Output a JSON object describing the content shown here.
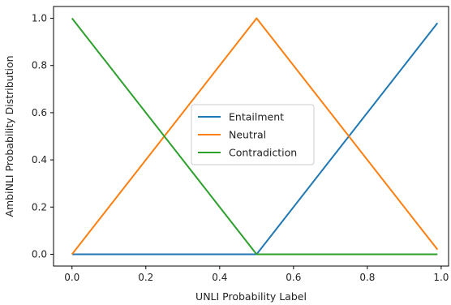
{
  "chart_data": {
    "type": "line",
    "title": "",
    "xlabel": "UNLI Probability Label",
    "ylabel": "AmbiNLI Probability Distribution",
    "xlim": [
      -0.05,
      1.02
    ],
    "ylim": [
      -0.05,
      1.05
    ],
    "xticks": [
      0.0,
      0.2,
      0.4,
      0.6,
      0.8,
      1.0
    ],
    "xtick_labels": [
      "0.0",
      "0.2",
      "0.4",
      "0.6",
      "0.8",
      "1.0"
    ],
    "yticks": [
      0.0,
      0.2,
      0.4,
      0.6,
      0.8,
      1.0
    ],
    "ytick_labels": [
      "0.0",
      "0.2",
      "0.4",
      "0.6",
      "0.8",
      "1.0"
    ],
    "grid": false,
    "legend_position": "center",
    "series": [
      {
        "name": "Entailment",
        "color": "#1f77b4",
        "x": [
          0.0,
          0.5,
          0.99
        ],
        "y": [
          0.0,
          0.0,
          0.98
        ]
      },
      {
        "name": "Neutral",
        "color": "#ff7f0e",
        "x": [
          0.0,
          0.5,
          0.99
        ],
        "y": [
          0.0,
          1.0,
          0.02
        ]
      },
      {
        "name": "Contradiction",
        "color": "#2ca02c",
        "x": [
          0.0,
          0.5,
          0.99
        ],
        "y": [
          1.0,
          0.0,
          0.0
        ]
      }
    ]
  }
}
